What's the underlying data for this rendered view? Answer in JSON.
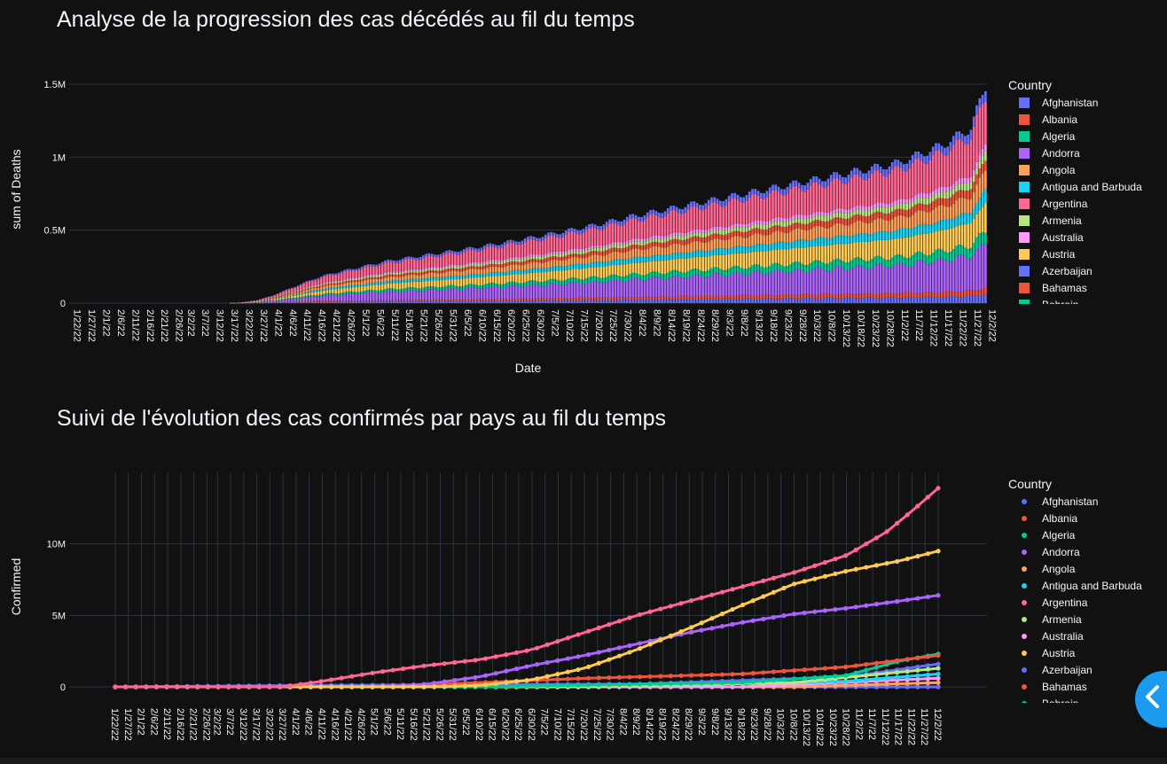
{
  "colors": {
    "background": "#111111",
    "grid": "#283442",
    "text": "#f2f5fa",
    "accent": "#1a9bf0",
    "palette": [
      "#636efa",
      "#EF553B",
      "#00cc96",
      "#ab63fa",
      "#FFA15A",
      "#19d3f3",
      "#FF6692",
      "#B6E880",
      "#FF97FF",
      "#FECB52"
    ]
  },
  "legend_items": [
    {
      "label": "Afghanistan",
      "color": "#636efa"
    },
    {
      "label": "Albania",
      "color": "#EF553B"
    },
    {
      "label": "Algeria",
      "color": "#00cc96"
    },
    {
      "label": "Andorra",
      "color": "#ab63fa"
    },
    {
      "label": "Angola",
      "color": "#FFA15A"
    },
    {
      "label": "Antigua and Barbuda",
      "color": "#19d3f3"
    },
    {
      "label": "Argentina",
      "color": "#FF6692"
    },
    {
      "label": "Armenia",
      "color": "#B6E880"
    },
    {
      "label": "Australia",
      "color": "#FF97FF"
    },
    {
      "label": "Austria",
      "color": "#FECB52"
    },
    {
      "label": "Azerbaijan",
      "color": "#636efa"
    },
    {
      "label": "Bahamas",
      "color": "#EF553B"
    },
    {
      "label": "Bahrain",
      "color": "#00cc96"
    }
  ],
  "sidebar_toggle": {
    "icon": "chevron-left-icon"
  },
  "chart_data": [
    {
      "type": "bar",
      "stacked": true,
      "title": "Analyse de la progression des cas décédés au fil du temps",
      "xlabel": "Date",
      "ylabel": "sum of Deaths",
      "legend_title": "Country",
      "legend_position": "right",
      "grid": true,
      "ylim": [
        0,
        1500000
      ],
      "y_ticks": [
        0,
        500000,
        1000000,
        1500000
      ],
      "y_tick_labels": [
        "0",
        "0.5M",
        "1M",
        "1.5M"
      ],
      "x_tick_labels": [
        "1/22/22",
        "1/27/22",
        "2/1/22",
        "2/6/22",
        "2/11/22",
        "2/16/22",
        "2/21/22",
        "2/26/22",
        "3/2/22",
        "3/7/22",
        "3/12/22",
        "3/17/22",
        "3/22/22",
        "3/27/22",
        "4/1/22",
        "4/6/22",
        "4/11/22",
        "4/16/22",
        "4/21/22",
        "4/26/22",
        "5/1/22",
        "5/6/22",
        "5/11/22",
        "5/16/22",
        "5/21/22",
        "5/26/22",
        "5/31/22",
        "6/5/22",
        "6/10/22",
        "6/15/22",
        "6/20/22",
        "6/25/22",
        "6/30/22",
        "7/5/22",
        "7/10/22",
        "7/15/22",
        "7/20/22",
        "7/25/22",
        "7/30/22",
        "8/4/22",
        "8/9/22",
        "8/14/22",
        "8/19/22",
        "8/24/22",
        "8/29/22",
        "9/3/22",
        "9/8/22",
        "9/13/22",
        "9/18/22",
        "9/23/22",
        "9/28/22",
        "10/3/22",
        "10/8/22",
        "10/13/22",
        "10/18/22",
        "10/23/22",
        "10/28/22",
        "11/2/22",
        "11/7/22",
        "11/12/22",
        "11/17/22",
        "11/22/22",
        "11/27/22",
        "12/2/22"
      ],
      "total_deaths": {
        "dates": [
          "1/22/22",
          "3/17/22",
          "3/22/22",
          "3/27/22",
          "4/1/22",
          "4/6/22",
          "4/11/22",
          "4/16/22",
          "4/21/22",
          "5/1/22",
          "5/11/22",
          "5/21/22",
          "6/5/22",
          "6/20/22",
          "7/5/22",
          "7/20/22",
          "8/4/22",
          "8/19/22",
          "9/3/22",
          "9/18/22",
          "10/3/22",
          "10/18/22",
          "11/2/22",
          "11/17/22",
          "11/27/22",
          "12/2/22"
        ],
        "values": [
          0,
          0,
          5000,
          20000,
          50000,
          90000,
          130000,
          170000,
          200000,
          245000,
          290000,
          320000,
          365000,
          415000,
          470000,
          530000,
          600000,
          660000,
          720000,
          780000,
          840000,
          900000,
          960000,
          1080000,
          1200000,
          1490000
        ]
      },
      "stack_shares": [
        {
          "name": "Afghanistan",
          "share": 0.04
        },
        {
          "name": "Bahamas",
          "share": 0.03
        },
        {
          "name": "Andorra",
          "share": 0.2
        },
        {
          "name": "Algeria",
          "share": 0.06
        },
        {
          "name": "Austria",
          "share": 0.13
        },
        {
          "name": "Antigua and Barbuda",
          "share": 0.06
        },
        {
          "name": "Angola",
          "share": 0.09
        },
        {
          "name": "Albania",
          "share": 0.05
        },
        {
          "name": "Armenia",
          "share": 0.04
        },
        {
          "name": "Australia",
          "share": 0.03
        },
        {
          "name": "Argentina",
          "share": 0.22
        },
        {
          "name": "Azerbaijan",
          "share": 0.05
        }
      ]
    },
    {
      "type": "scatter",
      "mode": "lines+markers",
      "title": "Suivi de l'évolution des cas confirmés par pays au fil du temps",
      "ylabel": "Confirmed",
      "legend_title": "Country",
      "legend_position": "right",
      "grid": true,
      "ylim": [
        0,
        15000000
      ],
      "y_ticks": [
        0,
        5000000,
        10000000
      ],
      "y_tick_labels": [
        "0",
        "5M",
        "10M"
      ],
      "x_tick_labels": [
        "1/22/22",
        "1/27/22",
        "2/1/22",
        "2/6/22",
        "2/11/22",
        "2/16/22",
        "2/21/22",
        "2/26/22",
        "3/2/22",
        "3/7/22",
        "3/12/22",
        "3/17/22",
        "3/22/22",
        "3/27/22",
        "4/1/22",
        "4/6/22",
        "4/11/22",
        "4/16/22",
        "4/21/22",
        "4/26/22",
        "5/1/22",
        "5/6/22",
        "5/11/22",
        "5/16/22",
        "5/21/22",
        "5/26/22",
        "5/31/22",
        "6/5/22",
        "6/10/22",
        "6/15/22",
        "6/20/22",
        "6/25/22",
        "6/30/22",
        "7/5/22",
        "7/10/22",
        "7/15/22",
        "7/20/22",
        "7/25/22",
        "7/30/22",
        "8/4/22",
        "8/9/22",
        "8/14/22",
        "8/19/22",
        "8/24/22",
        "8/29/22",
        "9/3/22",
        "9/8/22",
        "9/13/22",
        "9/18/22",
        "9/23/22",
        "9/28/22",
        "10/3/22",
        "10/8/22",
        "10/13/22",
        "10/18/22",
        "10/23/22",
        "10/28/22",
        "11/2/22",
        "11/7/22",
        "11/12/22",
        "11/17/22",
        "11/22/22",
        "11/27/22",
        "12/2/22"
      ],
      "series": [
        {
          "name": "Argentina",
          "color": "#FF6692",
          "x": [
            "1/22/22",
            "3/27/22",
            "4/11/22",
            "5/1/22",
            "5/21/22",
            "6/10/22",
            "6/30/22",
            "7/20/22",
            "8/9/22",
            "8/29/22",
            "9/18/22",
            "10/8/22",
            "10/28/22",
            "11/12/22",
            "11/22/22",
            "12/2/22"
          ],
          "values": [
            0,
            0,
            400000,
            1000000,
            1500000,
            1900000,
            2600000,
            3800000,
            5000000,
            6000000,
            7000000,
            8000000,
            9200000,
            10800000,
            12300000,
            13900000
          ]
        },
        {
          "name": "Austria",
          "color": "#FECB52",
          "x": [
            "1/22/22",
            "5/21/22",
            "6/10/22",
            "6/30/22",
            "7/20/22",
            "8/9/22",
            "8/29/22",
            "9/18/22",
            "10/8/22",
            "10/28/22",
            "11/17/22",
            "12/2/22"
          ],
          "values": [
            0,
            0,
            100000,
            500000,
            1300000,
            2600000,
            4100000,
            5700000,
            7200000,
            8100000,
            8800000,
            9500000
          ]
        },
        {
          "name": "Andorra",
          "color": "#ab63fa",
          "x": [
            "1/22/22",
            "5/1/22",
            "5/21/22",
            "6/10/22",
            "6/30/22",
            "7/20/22",
            "8/9/22",
            "8/29/22",
            "9/18/22",
            "10/8/22",
            "10/28/22",
            "11/17/22",
            "12/2/22"
          ],
          "values": [
            0,
            0,
            200000,
            700000,
            1500000,
            2200000,
            3000000,
            3800000,
            4500000,
            5100000,
            5500000,
            6000000,
            6400000
          ]
        },
        {
          "name": "Albania",
          "color": "#EF553B",
          "x": [
            "1/22/22",
            "5/1/22",
            "6/10/22",
            "7/20/22",
            "9/18/22",
            "10/28/22",
            "12/2/22"
          ],
          "values": [
            0,
            0,
            300000,
            600000,
            900000,
            1400000,
            2200000
          ]
        },
        {
          "name": "Algeria",
          "color": "#00cc96",
          "x": [
            "1/22/22",
            "6/10/22",
            "9/18/22",
            "10/28/22",
            "11/17/22",
            "12/2/22"
          ],
          "values": [
            0,
            0,
            300000,
            800000,
            1800000,
            2300000
          ]
        },
        {
          "name": "Armenia",
          "color": "#B6E880",
          "x": [
            "1/22/22",
            "7/20/22",
            "10/8/22",
            "12/2/22"
          ],
          "values": [
            0,
            0,
            300000,
            1300000
          ]
        },
        {
          "name": "Azerbaijan",
          "color": "#636efa",
          "x": [
            "1/22/22",
            "4/1/22",
            "8/9/22",
            "10/28/22",
            "12/2/22"
          ],
          "values": [
            0,
            100000,
            200000,
            700000,
            1600000
          ]
        },
        {
          "name": "Antigua and Barbuda",
          "color": "#19d3f3",
          "x": [
            "1/22/22",
            "7/20/22",
            "10/28/22",
            "12/2/22"
          ],
          "values": [
            0,
            0,
            400000,
            900000
          ]
        },
        {
          "name": "Australia",
          "color": "#FF97FF",
          "x": [
            "1/22/22",
            "9/18/22",
            "12/2/22"
          ],
          "values": [
            0,
            0,
            600000
          ]
        },
        {
          "name": "Angola",
          "color": "#FFA15A",
          "x": [
            "1/22/22",
            "10/8/22",
            "12/2/22"
          ],
          "values": [
            0,
            0,
            300000
          ]
        },
        {
          "name": "Afghanistan",
          "color": "#636efa",
          "x": [
            "1/22/22",
            "12/2/22"
          ],
          "values": [
            0,
            0
          ]
        },
        {
          "name": "Bahamas",
          "color": "#EF553B",
          "x": [
            "1/22/22",
            "12/2/22"
          ],
          "values": [
            0,
            0
          ]
        }
      ]
    }
  ]
}
